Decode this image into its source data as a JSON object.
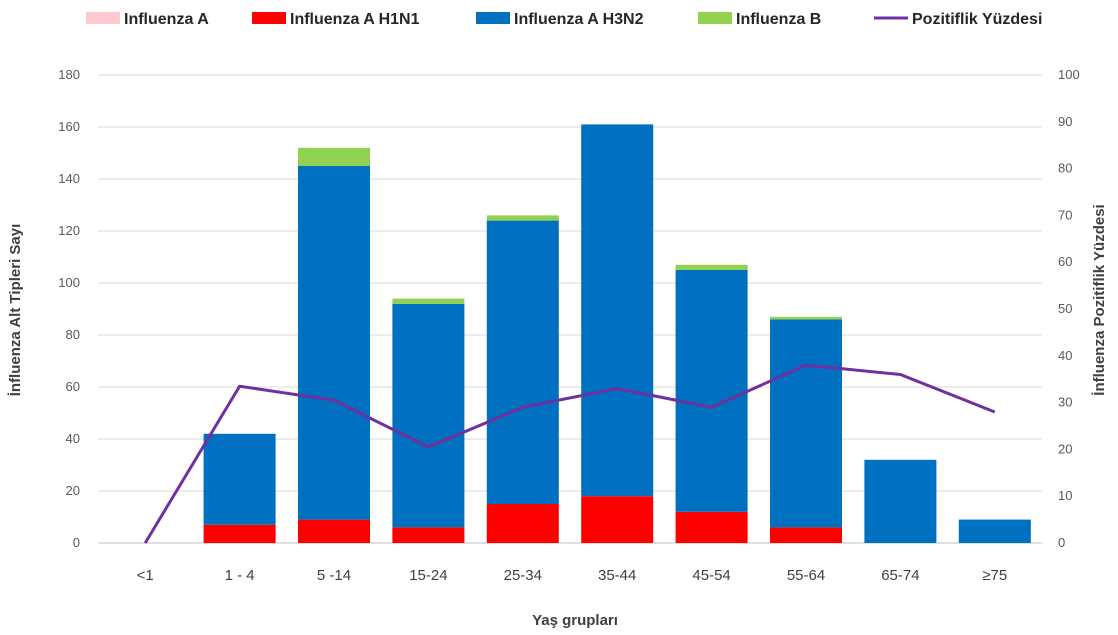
{
  "chart_data": {
    "type": "bar",
    "stacked": true,
    "categories": [
      "<1",
      "1 - 4",
      "5 -14",
      "15-24",
      "25-34",
      "35-44",
      "45-54",
      "55-64",
      "65-74",
      "≥75"
    ],
    "series": [
      {
        "name": "Influenza A",
        "kind": "bar",
        "axis": "left",
        "color": "#ffc7ce",
        "values": [
          0,
          0,
          0,
          0,
          0,
          0,
          0,
          0,
          0,
          0
        ]
      },
      {
        "name": "Influenza A H1N1",
        "kind": "bar",
        "axis": "left",
        "color": "#ff0000",
        "values": [
          0,
          7,
          9,
          6,
          15,
          18,
          12,
          6,
          0,
          0
        ]
      },
      {
        "name": "Influenza A H3N2",
        "kind": "bar",
        "axis": "left",
        "color": "#0070c0",
        "values": [
          0,
          35,
          136,
          86,
          109,
          143,
          93,
          80,
          32,
          9
        ]
      },
      {
        "name": "Influenza B",
        "kind": "bar",
        "axis": "left",
        "color": "#92d050",
        "values": [
          0,
          0,
          7,
          2,
          2,
          0,
          2,
          1,
          0,
          0
        ]
      },
      {
        "name": "Pozitiflik Yüzdesi",
        "kind": "line",
        "axis": "right",
        "color": "#7030a0",
        "values": [
          0,
          33.5,
          30.5,
          20.5,
          29,
          33,
          29,
          38,
          36,
          28
        ]
      }
    ],
    "xlabel": "Yaş grupları",
    "ylabel": "İnfluenza Alt Tipleri Sayı",
    "y2label": "İnfluenza Pozitiflik Yüzdesi",
    "ylim": [
      0,
      180
    ],
    "y2lim": [
      0,
      100
    ],
    "yticks": [
      0,
      20,
      40,
      60,
      80,
      100,
      120,
      140,
      160,
      180
    ],
    "y2ticks": [
      0,
      10,
      20,
      30,
      40,
      50,
      60,
      70,
      80,
      90,
      100
    ],
    "grid": true,
    "legend_position": "top"
  }
}
